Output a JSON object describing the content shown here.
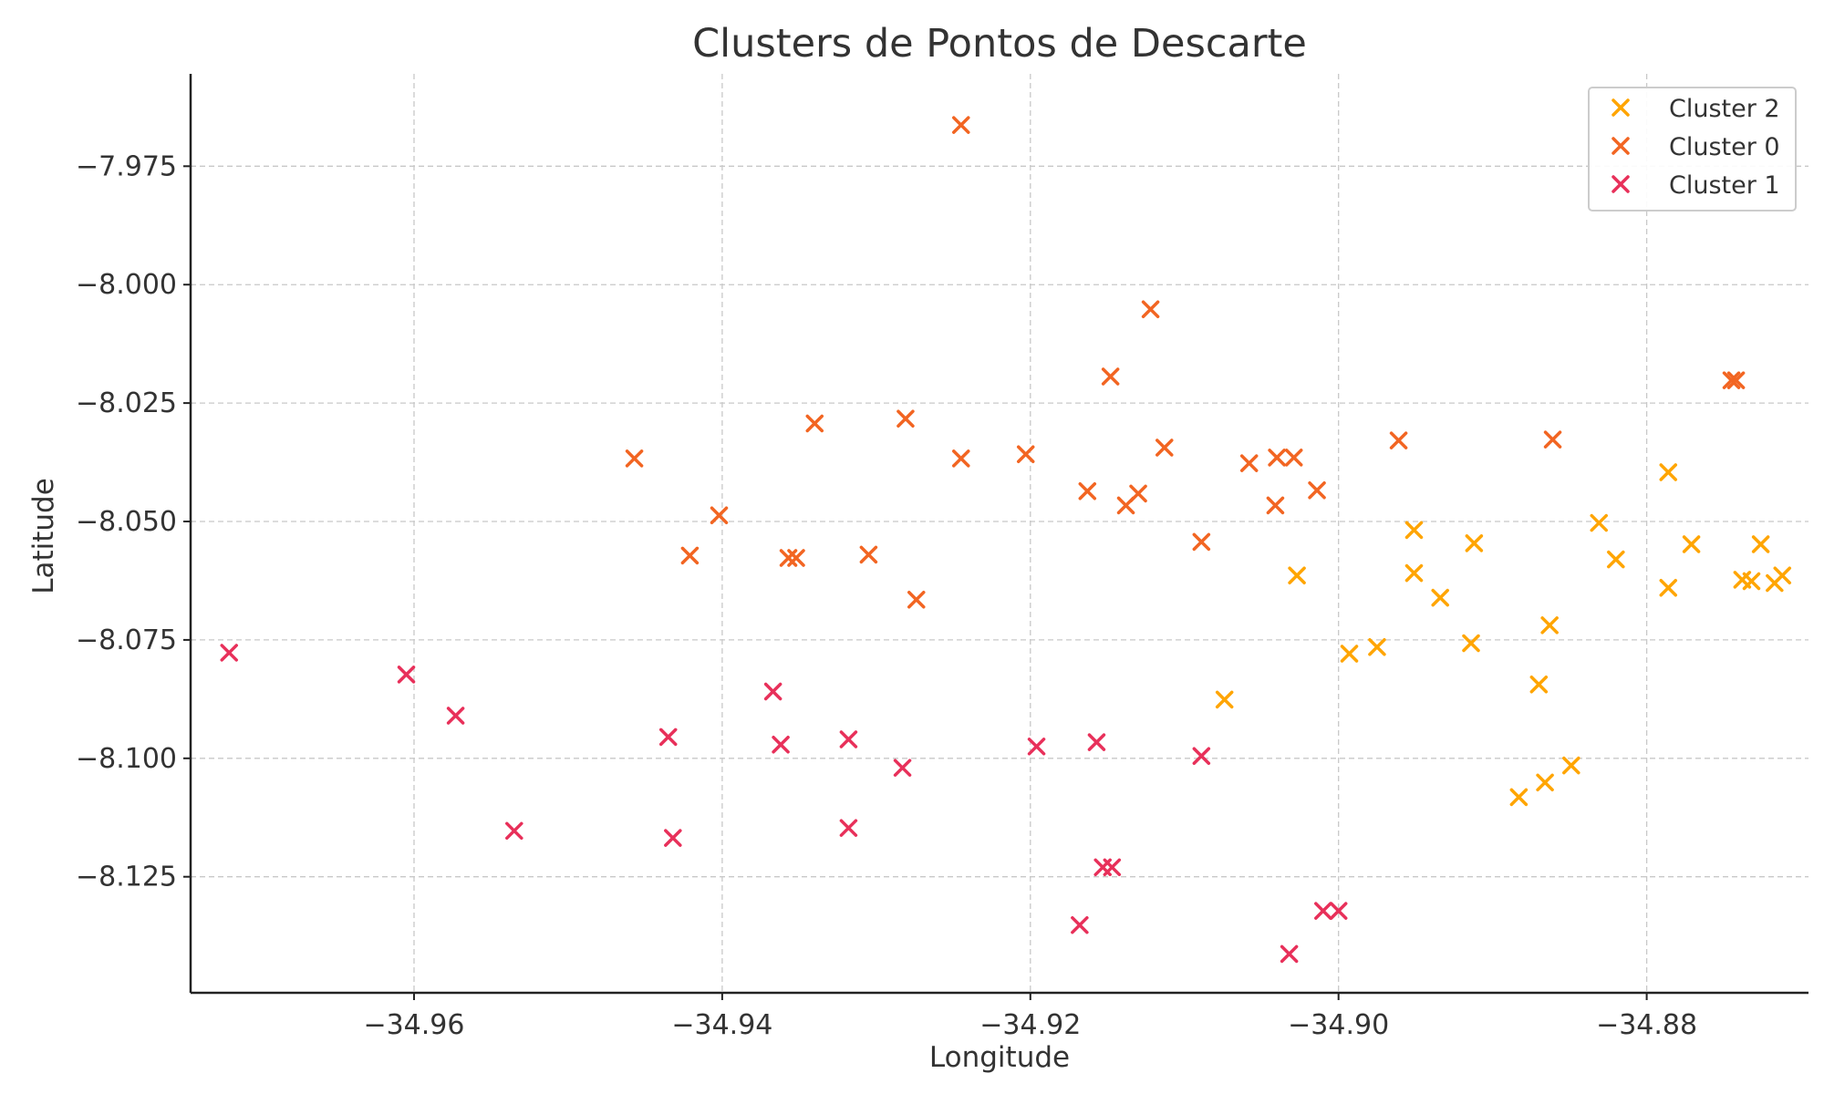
{
  "chart_data": {
    "type": "scatter",
    "title": "Clusters de Pontos de Descarte",
    "xlabel": "Longitude",
    "ylabel": "Latitude",
    "xlim": [
      -34.9745,
      -34.8695
    ],
    "ylim": [
      -8.1495,
      -7.9555
    ],
    "x_ticks": [
      -34.96,
      -34.94,
      -34.92,
      -34.9,
      -34.88
    ],
    "x_tick_labels": [
      "−34.96",
      "−34.94",
      "−34.92",
      "−34.90",
      "−34.88"
    ],
    "y_ticks": [
      -7.975,
      -8.0,
      -8.025,
      -8.05,
      -8.075,
      -8.1,
      -8.125
    ],
    "y_tick_labels": [
      "−7.975",
      "−8.000",
      "−8.025",
      "−8.050",
      "−8.075",
      "−8.100",
      "−8.125"
    ],
    "grid": true,
    "legend_position": "top-right",
    "marker": "x",
    "series": [
      {
        "name": "Cluster 2",
        "color": "#FFA500",
        "points": [
          [
            -34.9074,
            -8.0876
          ],
          [
            -34.8993,
            -8.0779
          ],
          [
            -34.8975,
            -8.0765
          ],
          [
            -34.9027,
            -8.0614
          ],
          [
            -34.8951,
            -8.0518
          ],
          [
            -34.8951,
            -8.0609
          ],
          [
            -34.8934,
            -8.0661
          ],
          [
            -34.8914,
            -8.0757
          ],
          [
            -34.8912,
            -8.0546
          ],
          [
            -34.8883,
            -8.1082
          ],
          [
            -34.887,
            -8.0844
          ],
          [
            -34.8866,
            -8.1051
          ],
          [
            -34.8863,
            -8.0719
          ],
          [
            -34.8849,
            -8.1015
          ],
          [
            -34.8831,
            -8.0503
          ],
          [
            -34.882,
            -8.058
          ],
          [
            -34.8786,
            -8.0396
          ],
          [
            -34.8786,
            -8.064
          ],
          [
            -34.8771,
            -8.0548
          ],
          [
            -34.8738,
            -8.0623
          ],
          [
            -34.8732,
            -8.0626
          ],
          [
            -34.8726,
            -8.0548
          ],
          [
            -34.8717,
            -8.063
          ],
          [
            -34.8712,
            -8.0614
          ]
        ]
      },
      {
        "name": "Cluster 0",
        "color": "#F26522",
        "points": [
          [
            -34.9245,
            -7.9663
          ],
          [
            -34.9122,
            -8.0052
          ],
          [
            -34.9148,
            -8.0194
          ],
          [
            -34.8745,
            -8.0202
          ],
          [
            -34.8742,
            -8.0202
          ],
          [
            -34.934,
            -8.0293
          ],
          [
            -34.9281,
            -8.0283
          ],
          [
            -34.9113,
            -8.0344
          ],
          [
            -34.8961,
            -8.0329
          ],
          [
            -34.8861,
            -8.0327
          ],
          [
            -34.9457,
            -8.0367
          ],
          [
            -34.9245,
            -8.0367
          ],
          [
            -34.9203,
            -8.0358
          ],
          [
            -34.904,
            -8.0365
          ],
          [
            -34.9029,
            -8.0365
          ],
          [
            -34.9058,
            -8.0377
          ],
          [
            -34.9163,
            -8.0436
          ],
          [
            -34.913,
            -8.0441
          ],
          [
            -34.9138,
            -8.0466
          ],
          [
            -34.9014,
            -8.0434
          ],
          [
            -34.9041,
            -8.0466
          ],
          [
            -34.9402,
            -8.0487
          ],
          [
            -34.9089,
            -8.0543
          ],
          [
            -34.9421,
            -8.0572
          ],
          [
            -34.9357,
            -8.0577
          ],
          [
            -34.9352,
            -8.0577
          ],
          [
            -34.9305,
            -8.057
          ],
          [
            -34.9274,
            -8.0665
          ]
        ]
      },
      {
        "name": "Cluster 1",
        "color": "#E8305A",
        "points": [
          [
            -34.972,
            -8.0777
          ],
          [
            -34.9605,
            -8.0823
          ],
          [
            -34.9573,
            -8.091
          ],
          [
            -34.9535,
            -8.1153
          ],
          [
            -34.9435,
            -8.0955
          ],
          [
            -34.9432,
            -8.1168
          ],
          [
            -34.9367,
            -8.0859
          ],
          [
            -34.9362,
            -8.0971
          ],
          [
            -34.9318,
            -8.096
          ],
          [
            -34.9318,
            -8.1147
          ],
          [
            -34.9283,
            -8.102
          ],
          [
            -34.9196,
            -8.0975
          ],
          [
            -34.9157,
            -8.0966
          ],
          [
            -34.9153,
            -8.123
          ],
          [
            -34.9147,
            -8.123
          ],
          [
            -34.9168,
            -8.1352
          ],
          [
            -34.9089,
            -8.0995
          ],
          [
            -34.901,
            -8.1322
          ],
          [
            -34.9,
            -8.1322
          ],
          [
            -34.9032,
            -8.1413
          ]
        ]
      }
    ]
  }
}
